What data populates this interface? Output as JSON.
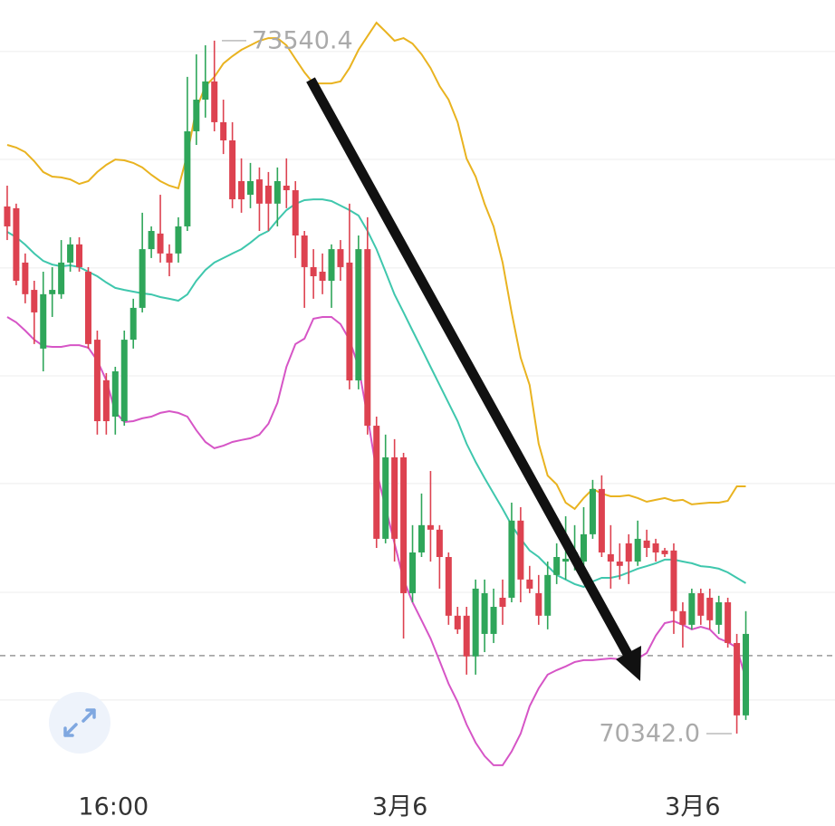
{
  "chart_data": {
    "type": "candlestick",
    "up_color": "#2fa65a",
    "down_color": "#dd4250",
    "ylim": [
      70091,
      73728
    ],
    "xlim": [
      -0.8,
      91.9
    ],
    "gridlines": [
      73490,
      72992,
      72491,
      71993,
      71496,
      70994,
      70497
    ],
    "price_line": 70702,
    "xticks": [
      {
        "value": 11.8,
        "label": "16:00"
      },
      {
        "value": 43.6,
        "label": "3月6"
      },
      {
        "value": 76.1,
        "label": "3月6"
      }
    ],
    "max_label": 73540.4,
    "min_label": {
      "value": 70342,
      "label": "70342.0"
    },
    "candles": [
      [
        72775,
        72871,
        72620,
        72683
      ],
      [
        72767,
        72788,
        72411,
        72432
      ],
      [
        72516,
        72558,
        72328,
        72370
      ],
      [
        72390,
        72432,
        72140,
        72286
      ],
      [
        72119,
        72474,
        72014,
        72370
      ],
      [
        72370,
        72495,
        72265,
        72390
      ],
      [
        72370,
        72620,
        72349,
        72516
      ],
      [
        72516,
        72633,
        72474,
        72600
      ],
      [
        72600,
        72633,
        72474,
        72495
      ],
      [
        72474,
        72495,
        72119,
        72140
      ],
      [
        72160,
        72202,
        71722,
        71784
      ],
      [
        71973,
        72006,
        71722,
        71784
      ],
      [
        71805,
        72035,
        71722,
        72014
      ],
      [
        71784,
        72202,
        71763,
        72160
      ],
      [
        72160,
        72349,
        72119,
        72307
      ],
      [
        72307,
        72746,
        72286,
        72578
      ],
      [
        72578,
        72683,
        72537,
        72662
      ],
      [
        72650,
        72829,
        72516,
        72558
      ],
      [
        72558,
        72600,
        72453,
        72516
      ],
      [
        72558,
        72725,
        72516,
        72683
      ],
      [
        72683,
        73373,
        72662,
        73122
      ],
      [
        73122,
        73477,
        73059,
        73268
      ],
      [
        73268,
        73519,
        73185,
        73352
      ],
      [
        73352,
        73540.4,
        73122,
        73164
      ],
      [
        73164,
        73268,
        73017,
        73080
      ],
      [
        73080,
        73164,
        72767,
        72808
      ],
      [
        72892,
        72997,
        72746,
        72808
      ],
      [
        72829,
        72976,
        72767,
        72892
      ],
      [
        72900,
        72955,
        72662,
        72788
      ],
      [
        72871,
        72934,
        72662,
        72788
      ],
      [
        72788,
        72955,
        72683,
        72892
      ],
      [
        72871,
        72997,
        72767,
        72850
      ],
      [
        72850,
        72892,
        72537,
        72641
      ],
      [
        72641,
        72662,
        72307,
        72495
      ],
      [
        72495,
        72578,
        72349,
        72453
      ],
      [
        72474,
        72558,
        72370,
        72432
      ],
      [
        72432,
        72600,
        72307,
        72578
      ],
      [
        72578,
        72620,
        72432,
        72495
      ],
      [
        72516,
        72788,
        71931,
        71972
      ],
      [
        71972,
        72641,
        71931,
        72578
      ],
      [
        72578,
        72725,
        71722,
        71763
      ],
      [
        71763,
        71805,
        71199,
        71241
      ],
      [
        71241,
        71722,
        71220,
        71617
      ],
      [
        71617,
        71701,
        71136,
        71241
      ],
      [
        71617,
        71638,
        70781,
        70990
      ],
      [
        70990,
        71304,
        70948,
        71178
      ],
      [
        71178,
        71450,
        71157,
        71304
      ],
      [
        71304,
        71554,
        71136,
        71283
      ],
      [
        71283,
        71304,
        71011,
        71157
      ],
      [
        71157,
        71178,
        70844,
        70886
      ],
      [
        70886,
        70927,
        70802,
        70823
      ],
      [
        70886,
        70927,
        70614,
        70698
      ],
      [
        70698,
        71053,
        70614,
        71011
      ],
      [
        70802,
        71053,
        70718,
        70990
      ],
      [
        70802,
        71011,
        70760,
        70927
      ],
      [
        70969,
        71053,
        70844,
        70927
      ],
      [
        70969,
        71408,
        70948,
        71325
      ],
      [
        71325,
        71387,
        70948,
        71053
      ],
      [
        71053,
        71116,
        70990,
        71011
      ],
      [
        70990,
        71074,
        70844,
        70886
      ],
      [
        70886,
        71136,
        70823,
        71074
      ],
      [
        71074,
        71220,
        71032,
        71157
      ],
      [
        71136,
        71345,
        71053,
        71149
      ],
      [
        71136,
        71304,
        71095,
        71178
      ],
      [
        71136,
        71387,
        71053,
        71262
      ],
      [
        71262,
        71513,
        71241,
        71471
      ],
      [
        71471,
        71534,
        71157,
        71178
      ],
      [
        71170,
        71304,
        71011,
        71136
      ],
      [
        71136,
        71220,
        71053,
        71116
      ],
      [
        71220,
        71262,
        71032,
        71136
      ],
      [
        71136,
        71325,
        71116,
        71241
      ],
      [
        71233,
        71283,
        71157,
        71199
      ],
      [
        71220,
        71241,
        71136,
        71178
      ],
      [
        71187,
        71199,
        71157,
        71170
      ],
      [
        71187,
        71220,
        70802,
        70907
      ],
      [
        70907,
        70948,
        70739,
        70844
      ],
      [
        70844,
        71011,
        70823,
        70990
      ],
      [
        70990,
        71011,
        70844,
        70886
      ],
      [
        70969,
        71011,
        70823,
        70865
      ],
      [
        70844,
        70978,
        70802,
        70948
      ],
      [
        70948,
        70969,
        70739,
        70760
      ],
      [
        70760,
        70802,
        70342,
        70426
      ],
      [
        70426,
        70907,
        70405,
        70802
      ]
    ],
    "lines": [
      {
        "color": "#e9b320",
        "values": [
          73059,
          73047,
          73026,
          72984,
          72934,
          72913,
          72909,
          72900,
          72879,
          72892,
          72934,
          72967,
          72992,
          72988,
          72976,
          72955,
          72921,
          72892,
          72871,
          72859,
          73017,
          73226,
          73331,
          73373,
          73435,
          73469,
          73498,
          73519,
          73540,
          73552,
          73552,
          73519,
          73456,
          73394,
          73343,
          73343,
          73343,
          73352,
          73414,
          73498,
          73561,
          73623,
          73582,
          73540,
          73552,
          73527,
          73477,
          73414,
          73331,
          73268,
          73164,
          72996,
          72913,
          72787,
          72683,
          72516,
          72286,
          72077,
          71951,
          71680,
          71533,
          71492,
          71408,
          71379,
          71429,
          71471,
          71450,
          71437,
          71437,
          71442,
          71429,
          71412,
          71421,
          71429,
          71416,
          71421,
          71400,
          71404,
          71408,
          71408,
          71416,
          71483,
          71483
        ]
      },
      {
        "color": "#3fc7ad",
        "values": [
          72658,
          72633,
          72599,
          72558,
          72524,
          72507,
          72499,
          72503,
          72495,
          72474,
          72453,
          72424,
          72399,
          72390,
          72382,
          72374,
          72369,
          72357,
          72349,
          72340,
          72369,
          72432,
          72482,
          72516,
          72537,
          72558,
          72578,
          72608,
          72641,
          72662,
          72712,
          72758,
          72787,
          72804,
          72808,
          72808,
          72800,
          72779,
          72758,
          72733,
          72662,
          72578,
          72474,
          72369,
          72286,
          72202,
          72119,
          72035,
          71951,
          71868,
          71784,
          71680,
          71596,
          71521,
          71450,
          71379,
          71304,
          71241,
          71187,
          71157,
          71115,
          71074,
          71053,
          71032,
          71019,
          71044,
          71061,
          71061,
          71070,
          71086,
          71103,
          71115,
          71128,
          71145,
          71145,
          71136,
          71128,
          71115,
          71111,
          71103,
          71086,
          71061,
          71036
        ]
      },
      {
        "color": "#d655c6",
        "values": [
          72265,
          72240,
          72202,
          72160,
          72131,
          72127,
          72127,
          72135,
          72135,
          72123,
          72064,
          71972,
          71826,
          71780,
          71784,
          71797,
          71805,
          71822,
          71830,
          71822,
          71805,
          71742,
          71688,
          71659,
          71671,
          71688,
          71697,
          71705,
          71722,
          71772,
          71868,
          72035,
          72140,
          72165,
          72257,
          72265,
          72265,
          72232,
          72160,
          72035,
          71805,
          71554,
          71387,
          71220,
          71053,
          70948,
          70865,
          70781,
          70677,
          70572,
          70488,
          70384,
          70300,
          70238,
          70196,
          70196,
          70259,
          70342,
          70468,
          70551,
          70614,
          70635,
          70652,
          70672,
          70681,
          70681,
          70685,
          70689,
          70685,
          70685,
          70689,
          70714,
          70794,
          70852,
          70861,
          70844,
          70823,
          70835,
          70823,
          70781,
          70764,
          70739,
          70593
        ]
      }
    ]
  }
}
